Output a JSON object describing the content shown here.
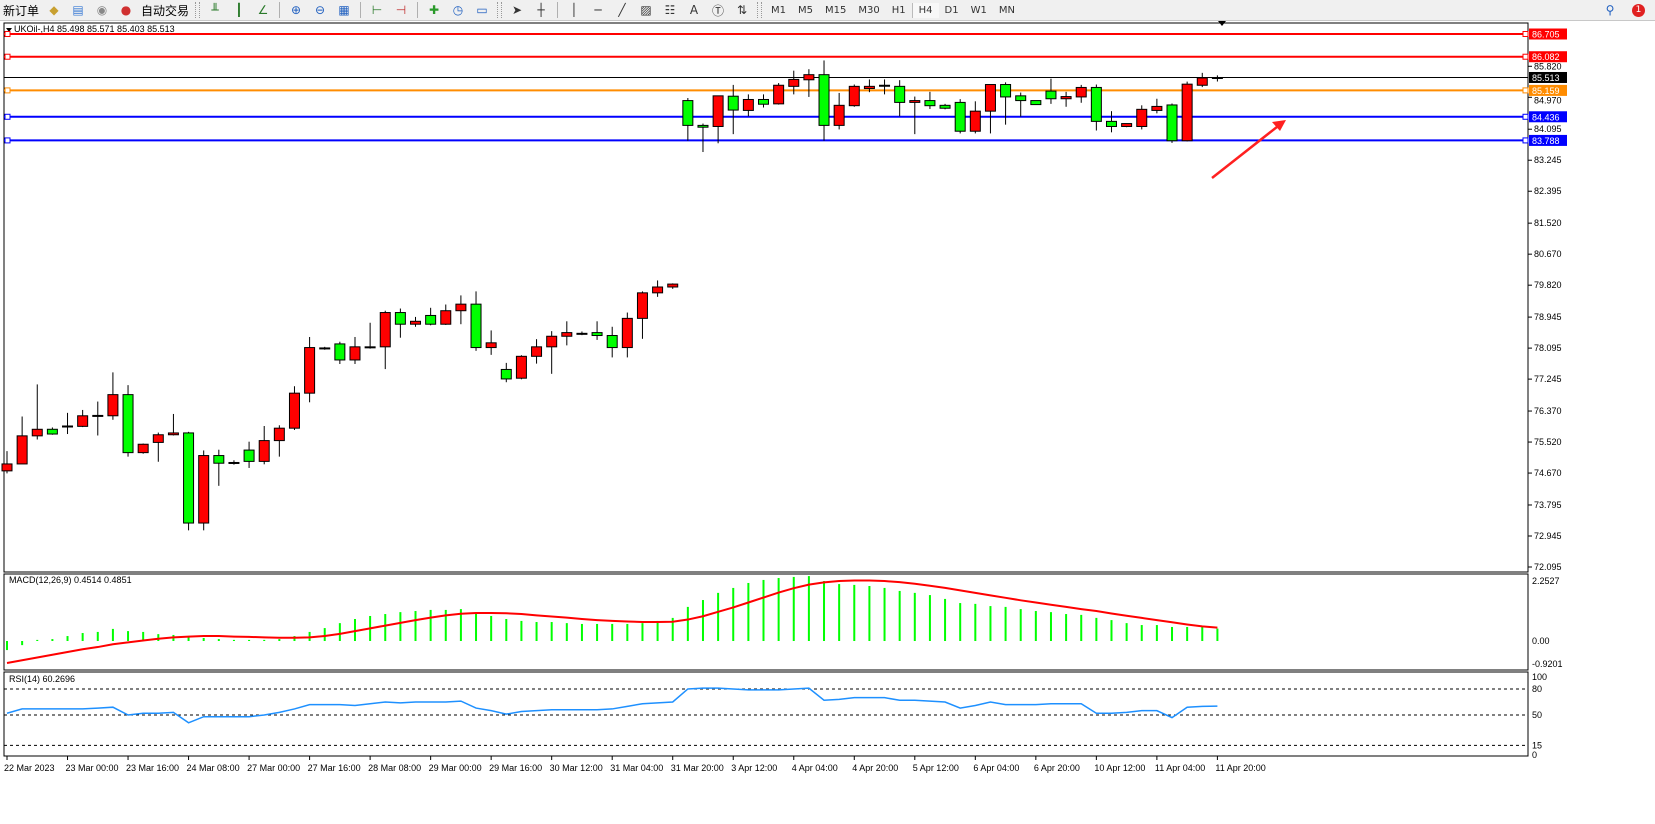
{
  "toolbar": {
    "new_order": "新订单",
    "auto_trading": "自动交易",
    "timeframes": [
      "M1",
      "M5",
      "M15",
      "M30",
      "H1",
      "H4",
      "D1",
      "W1",
      "MN"
    ],
    "active_timeframe": "H4",
    "notification_count": "1",
    "icons": [
      "book-icon",
      "market-watch-icon",
      "signal-icon",
      "auto-trading-icon",
      "bar-chart-icon",
      "candlestick-icon",
      "line-chart-icon",
      "zoom-in-icon",
      "zoom-out-icon",
      "tile-windows-icon",
      "chart-shift-icon",
      "autoscroll-icon",
      "new-chart-icon",
      "clock-icon",
      "template-icon",
      "cursor-icon",
      "crosshair-icon",
      "vertical-line-icon",
      "horizontal-line-icon",
      "trendline-icon",
      "fibonacci-channel-icon",
      "fibonacci-icon",
      "text-icon",
      "text-label-icon",
      "arrows-icon",
      "search-icon",
      "chat-icon"
    ]
  },
  "chart": {
    "header": "UKOil-,H4  85.498 85.571 85.403 85.513",
    "symbol": "UKOil-",
    "timeframe": "H4",
    "colors": {
      "bull": "#ff0000",
      "bear": "#00ff00",
      "macd_hist": "#00ff00",
      "signal": "#ff0000",
      "rsi": "#1e90ff",
      "arrow": "#ff2020"
    },
    "price_ticks": [
      "85.820",
      "84.970",
      "84.095",
      "83.245",
      "82.395",
      "81.520",
      "80.670",
      "79.820",
      "78.945",
      "78.095",
      "77.245",
      "76.370",
      "75.520",
      "74.670",
      "73.795",
      "72.945",
      "72.095"
    ],
    "price_range": [
      72.095,
      86.705
    ],
    "levels": [
      {
        "price": "86.705",
        "color": "#ff0000"
      },
      {
        "price": "86.082",
        "color": "#ff0000"
      },
      {
        "price": "85.513",
        "color": "#000000"
      },
      {
        "price": "85.159",
        "color": "#ff8c00"
      },
      {
        "price": "84.436",
        "color": "#0000ff"
      },
      {
        "price": "83.788",
        "color": "#0000ff"
      }
    ],
    "time_labels": [
      "22 Mar 2023",
      "23 Mar 00:00",
      "23 Mar 16:00",
      "24 Mar 08:00",
      "27 Mar 00:00",
      "27 Mar 16:00",
      "28 Mar 08:00",
      "29 Mar 00:00",
      "29 Mar 16:00",
      "30 Mar 12:00",
      "31 Mar 04:00",
      "31 Mar 20:00",
      "3 Apr 12:00",
      "4 Apr 04:00",
      "4 Apr 20:00",
      "5 Apr 12:00",
      "6 Apr 04:00",
      "6 Apr 20:00",
      "10 Apr 12:00",
      "11 Apr 04:00",
      "11 Apr 20:00"
    ]
  },
  "macd": {
    "label": "MACD(12,26,9) 0.4514 0.4851",
    "scale": [
      "2.2527",
      "0.00",
      "-0.9201"
    ]
  },
  "rsi": {
    "label": "RSI(14) 60.2696",
    "scale": [
      "100",
      "80",
      "50",
      "15",
      "0"
    ],
    "levels": [
      80,
      50,
      15
    ]
  },
  "chart_data": {
    "type": "candlestick",
    "ohlc": [
      [
        74.73,
        75.27,
        74.66,
        74.92
      ],
      [
        74.92,
        76.22,
        74.92,
        75.69
      ],
      [
        75.69,
        77.1,
        75.59,
        75.87
      ],
      [
        75.87,
        75.92,
        75.72,
        75.74
      ],
      [
        75.95,
        76.32,
        75.74,
        75.96
      ],
      [
        75.95,
        76.4,
        75.93,
        76.24
      ],
      [
        76.24,
        76.63,
        75.7,
        76.25
      ],
      [
        76.24,
        77.43,
        76.13,
        76.82
      ],
      [
        76.82,
        77.08,
        75.12,
        75.23
      ],
      [
        75.23,
        75.48,
        75.2,
        75.46
      ],
      [
        75.51,
        75.78,
        74.98,
        75.72
      ],
      [
        75.72,
        76.29,
        75.7,
        75.77
      ],
      [
        75.77,
        75.8,
        73.1,
        73.3
      ],
      [
        73.3,
        75.29,
        73.1,
        75.15
      ],
      [
        75.15,
        75.31,
        74.32,
        74.94
      ],
      [
        74.96,
        75.02,
        74.9,
        74.95
      ],
      [
        75.3,
        75.53,
        74.81,
        74.99
      ],
      [
        74.99,
        75.96,
        74.91,
        75.56
      ],
      [
        75.56,
        75.98,
        75.12,
        75.9
      ],
      [
        75.9,
        77.05,
        75.85,
        76.86
      ],
      [
        76.86,
        78.4,
        76.61,
        78.11
      ],
      [
        78.08,
        78.13,
        78.05,
        78.1
      ],
      [
        78.21,
        78.27,
        77.66,
        77.77
      ],
      [
        77.77,
        78.4,
        77.66,
        78.13
      ],
      [
        78.12,
        78.79,
        78.08,
        78.13
      ],
      [
        78.13,
        79.12,
        77.52,
        79.07
      ],
      [
        79.07,
        79.18,
        78.38,
        78.75
      ],
      [
        78.75,
        78.95,
        78.68,
        78.83
      ],
      [
        78.99,
        79.2,
        78.72,
        78.75
      ],
      [
        78.75,
        79.29,
        78.73,
        79.12
      ],
      [
        79.12,
        79.54,
        78.75,
        79.3
      ],
      [
        79.3,
        79.65,
        78.02,
        78.11
      ],
      [
        78.11,
        78.58,
        77.91,
        78.24
      ],
      [
        77.51,
        77.69,
        77.16,
        77.25
      ],
      [
        77.27,
        77.9,
        77.24,
        77.87
      ],
      [
        77.87,
        78.34,
        77.67,
        78.13
      ],
      [
        78.13,
        78.56,
        77.39,
        78.42
      ],
      [
        78.42,
        78.83,
        78.17,
        78.52
      ],
      [
        78.49,
        78.55,
        78.45,
        78.5
      ],
      [
        78.52,
        78.83,
        78.32,
        78.44
      ],
      [
        78.44,
        78.68,
        77.84,
        78.11
      ],
      [
        78.11,
        79.07,
        77.84,
        78.91
      ],
      [
        78.91,
        79.65,
        78.35,
        79.61
      ],
      [
        79.61,
        79.95,
        79.5,
        79.77
      ],
      [
        79.77,
        79.87,
        79.72,
        79.85
      ],
      [
        84.88,
        84.95,
        83.78,
        84.2
      ],
      [
        84.2,
        84.25,
        83.47,
        84.15
      ],
      [
        84.17,
        85.01,
        83.71,
        85.01
      ],
      [
        85.0,
        85.31,
        83.96,
        84.62
      ],
      [
        84.61,
        85.05,
        84.45,
        84.91
      ],
      [
        84.91,
        85.05,
        84.69,
        84.78
      ],
      [
        84.79,
        85.36,
        84.77,
        85.3
      ],
      [
        85.27,
        85.7,
        85.05,
        85.46
      ],
      [
        85.45,
        85.74,
        84.98,
        85.59
      ],
      [
        85.59,
        85.98,
        83.78,
        84.2
      ],
      [
        84.2,
        85.09,
        84.09,
        84.75
      ],
      [
        84.74,
        85.32,
        84.71,
        85.27
      ],
      [
        85.21,
        85.46,
        85.11,
        85.27
      ],
      [
        85.29,
        85.46,
        85.05,
        85.3
      ],
      [
        85.27,
        85.44,
        84.45,
        84.83
      ],
      [
        84.83,
        84.99,
        83.96,
        84.88
      ],
      [
        84.88,
        85.12,
        84.65,
        84.74
      ],
      [
        84.75,
        84.79,
        84.64,
        84.67
      ],
      [
        84.83,
        84.92,
        83.98,
        84.04
      ],
      [
        84.04,
        84.86,
        83.98,
        84.59
      ],
      [
        84.59,
        85.32,
        83.98,
        85.32
      ],
      [
        85.32,
        85.38,
        84.22,
        84.98
      ],
      [
        85.01,
        85.1,
        84.44,
        84.88
      ],
      [
        84.88,
        84.88,
        84.77,
        84.77
      ],
      [
        85.14,
        85.48,
        84.79,
        84.93
      ],
      [
        84.93,
        85.12,
        84.71,
        84.99
      ],
      [
        84.98,
        85.31,
        84.82,
        85.24
      ],
      [
        85.24,
        85.32,
        84.06,
        84.31
      ],
      [
        84.31,
        84.59,
        84.01,
        84.17
      ],
      [
        84.17,
        84.24,
        84.15,
        84.25
      ],
      [
        84.17,
        84.75,
        84.09,
        84.64
      ],
      [
        84.61,
        84.93,
        84.53,
        84.72
      ],
      [
        84.76,
        84.8,
        83.72,
        83.78
      ],
      [
        83.78,
        85.4,
        83.76,
        85.33
      ],
      [
        85.3,
        85.64,
        85.25,
        85.5
      ],
      [
        85.498,
        85.571,
        85.403,
        85.513
      ]
    ],
    "macd_histogram": [
      -0.33,
      -0.15,
      0.04,
      0.07,
      0.18,
      0.29,
      0.33,
      0.44,
      0.36,
      0.33,
      0.25,
      0.22,
      0.15,
      0.11,
      0.07,
      0.04,
      0.04,
      0.04,
      0.07,
      0.18,
      0.33,
      0.47,
      0.65,
      0.8,
      0.91,
      0.98,
      1.05,
      1.09,
      1.13,
      1.13,
      1.16,
      1.02,
      0.91,
      0.8,
      0.73,
      0.69,
      0.69,
      0.65,
      0.62,
      0.62,
      0.62,
      0.62,
      0.65,
      0.73,
      0.84,
      1.24,
      1.49,
      1.75,
      1.93,
      2.11,
      2.22,
      2.29,
      2.33,
      2.36,
      2.18,
      2.07,
      2.04,
      2.0,
      1.93,
      1.82,
      1.75,
      1.67,
      1.53,
      1.38,
      1.35,
      1.27,
      1.24,
      1.16,
      1.09,
      1.05,
      0.98,
      0.95,
      0.84,
      0.76,
      0.65,
      0.58,
      0.58,
      0.51,
      0.51,
      0.55,
      0.4514
    ],
    "macd_signal": [
      -0.8,
      -0.7,
      -0.6,
      -0.5,
      -0.4,
      -0.3,
      -0.22,
      -0.12,
      -0.05,
      0.02,
      0.08,
      0.13,
      0.16,
      0.18,
      0.18,
      0.16,
      0.15,
      0.13,
      0.12,
      0.12,
      0.13,
      0.18,
      0.26,
      0.36,
      0.46,
      0.56,
      0.66,
      0.76,
      0.85,
      0.93,
      0.99,
      1.02,
      1.02,
      1.01,
      0.98,
      0.93,
      0.89,
      0.85,
      0.8,
      0.76,
      0.73,
      0.71,
      0.69,
      0.69,
      0.7,
      0.78,
      0.9,
      1.06,
      1.22,
      1.4,
      1.58,
      1.76,
      1.92,
      2.05,
      2.13,
      2.18,
      2.2,
      2.2,
      2.18,
      2.14,
      2.08,
      2.01,
      1.93,
      1.84,
      1.75,
      1.66,
      1.57,
      1.48,
      1.4,
      1.32,
      1.24,
      1.16,
      1.09,
      1.0,
      0.92,
      0.84,
      0.76,
      0.68,
      0.6,
      0.53,
      0.4851
    ],
    "macd_range": [
      -0.9201,
      2.2527
    ],
    "rsi": [
      52,
      57,
      57,
      57,
      57,
      57,
      58,
      59,
      50,
      52,
      52,
      53,
      41,
      48,
      48,
      48,
      48,
      50,
      53,
      57,
      62,
      62,
      62,
      61,
      63,
      65,
      64,
      65,
      65,
      65,
      66,
      58,
      55,
      51,
      54,
      55,
      56,
      56,
      56,
      56,
      57,
      60,
      63,
      64,
      65,
      80,
      81,
      81,
      80,
      79,
      79,
      79,
      80,
      81,
      67,
      68,
      70,
      70,
      70,
      67,
      67,
      66,
      65,
      58,
      61,
      65,
      62,
      62,
      62,
      63,
      63,
      63,
      52,
      52,
      53,
      55,
      55,
      47,
      59,
      60,
      60.2696
    ],
    "rsi_range": [
      0,
      100
    ]
  }
}
